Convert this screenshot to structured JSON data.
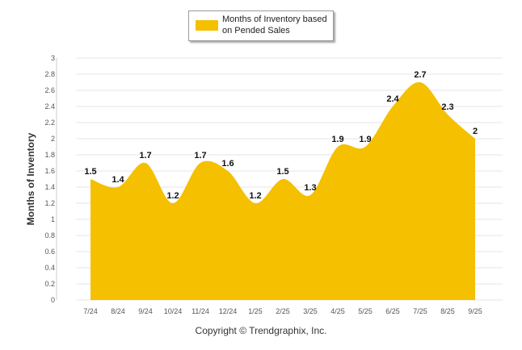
{
  "legend": {
    "label": "Months of Inventory based on Pended Sales"
  },
  "copyright": "Copyright © Trendgraphix, Inc.",
  "colors": {
    "area": "#f5c000",
    "grid": "#e6e6e6",
    "axis": "#cccccc"
  },
  "chart_data": {
    "type": "area",
    "categories": [
      "7/24",
      "8/24",
      "9/24",
      "10/24",
      "11/24",
      "12/24",
      "1/25",
      "2/25",
      "3/25",
      "4/25",
      "5/25",
      "6/25",
      "7/25",
      "8/25",
      "9/25"
    ],
    "series": [
      {
        "name": "Months of Inventory based on Pended Sales",
        "values": [
          1.5,
          1.4,
          1.7,
          1.2,
          1.7,
          1.6,
          1.2,
          1.5,
          1.3,
          1.9,
          1.9,
          2.4,
          2.7,
          2.3,
          2
        ]
      }
    ],
    "data_labels": [
      "1.5",
      "1.4",
      "1.7",
      "1.2",
      "1.7",
      "1.6",
      "1.2",
      "1.5",
      "1.3",
      "1.9",
      "1.9",
      "2.4",
      "2.7",
      "2.3",
      "2"
    ],
    "yticks": [
      "0",
      "0.2",
      "0.4",
      "0.6",
      "0.8",
      "1",
      "1.2",
      "1.4",
      "1.6",
      "1.8",
      "2",
      "2.2",
      "2.4",
      "2.6",
      "2.8",
      "3"
    ],
    "ylabel": "Months of Inventory",
    "xlabel": "",
    "ylim": [
      0,
      3
    ],
    "grid": true,
    "legend_position": "top-center"
  }
}
